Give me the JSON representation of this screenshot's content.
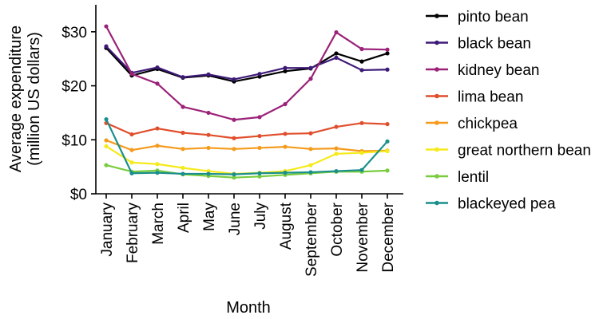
{
  "chart_data": {
    "type": "line",
    "title": "",
    "xlabel": "Month",
    "ylabel_line1": "Average expenditure",
    "ylabel_line2": "(million US dollars)",
    "ylim": [
      0,
      35
    ],
    "yticks": [
      0,
      10,
      20,
      30
    ],
    "ytick_labels": [
      "$0",
      "$10",
      "$20",
      "$30"
    ],
    "categories": [
      "January",
      "February",
      "March",
      "April",
      "May",
      "June",
      "July",
      "August",
      "September",
      "October",
      "November",
      "December"
    ],
    "legend_position": "right",
    "series": [
      {
        "name": "pinto bean",
        "color": "#000000",
        "values": [
          27.0,
          21.9,
          23.1,
          21.5,
          21.9,
          20.8,
          21.7,
          22.7,
          23.2,
          26.0,
          24.5,
          26.0
        ]
      },
      {
        "name": "black bean",
        "color": "#3d1a78",
        "values": [
          27.3,
          22.4,
          23.4,
          21.6,
          22.1,
          21.2,
          22.2,
          23.3,
          23.3,
          25.2,
          22.9,
          23.0
        ]
      },
      {
        "name": "kidney bean",
        "color": "#9b2278",
        "values": [
          31.0,
          22.2,
          20.4,
          16.1,
          15.0,
          13.7,
          14.2,
          16.6,
          21.3,
          29.9,
          26.8,
          26.7
        ]
      },
      {
        "name": "lima bean",
        "color": "#e04e2c",
        "values": [
          13.1,
          11.0,
          12.1,
          11.3,
          10.9,
          10.3,
          10.7,
          11.1,
          11.2,
          12.4,
          13.1,
          12.9
        ]
      },
      {
        "name": "chickpea",
        "color": "#f59b1c",
        "values": [
          9.9,
          8.1,
          8.9,
          8.3,
          8.5,
          8.3,
          8.5,
          8.7,
          8.3,
          8.4,
          7.9,
          8.0
        ]
      },
      {
        "name": "great northern bean",
        "color": "#f5ea1b",
        "values": [
          8.8,
          5.8,
          5.5,
          4.8,
          4.2,
          3.7,
          3.9,
          4.2,
          5.3,
          7.4,
          7.6,
          7.9
        ]
      },
      {
        "name": "lentil",
        "color": "#7acc3f",
        "values": [
          5.3,
          4.1,
          4.3,
          3.6,
          3.3,
          3.0,
          3.2,
          3.5,
          3.8,
          4.1,
          4.1,
          4.3
        ]
      },
      {
        "name": "blackeyed pea",
        "color": "#1a8f8c",
        "values": [
          13.8,
          3.8,
          3.9,
          3.7,
          3.7,
          3.6,
          3.8,
          3.9,
          4.0,
          4.2,
          4.4,
          9.7
        ]
      }
    ]
  }
}
